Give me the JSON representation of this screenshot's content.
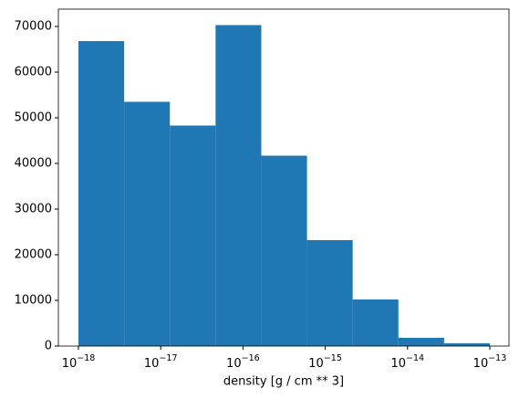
{
  "chart_data": {
    "type": "histogram",
    "xlabel": "density [g / cm ** 3]",
    "log_x": true,
    "color": "#1f77b4",
    "bins": [
      1e-18,
      3.594e-18,
      1.292e-17,
      4.642e-17,
      1.668e-16,
      5.995e-16,
      2.154e-15,
      7.743e-15,
      2.783e-14,
      1e-13
    ],
    "values": [
      66800,
      53500,
      48300,
      70300,
      41700,
      23200,
      10200,
      1800,
      600
    ],
    "xlim": [
      5.7e-19,
      1.71e-13
    ],
    "ylim": [
      0,
      73800
    ],
    "xticks": [
      {
        "value": 1e-18,
        "label": "10−18"
      },
      {
        "value": 1e-17,
        "label": "10−17"
      },
      {
        "value": 1e-16,
        "label": "10−16"
      },
      {
        "value": 1e-15,
        "label": "10−15"
      },
      {
        "value": 1e-14,
        "label": "10−14"
      },
      {
        "value": 1e-13,
        "label": "10−13"
      }
    ],
    "yticks": [
      0,
      10000,
      20000,
      30000,
      40000,
      50000,
      60000,
      70000
    ]
  }
}
